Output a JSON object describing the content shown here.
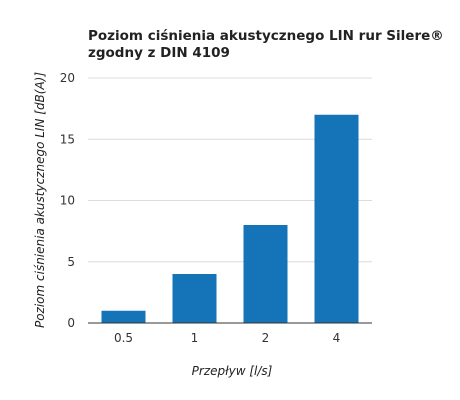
{
  "chart_data": {
    "type": "bar",
    "title_lines": [
      "Poziom ciśnienia akustycznego LIN rur Silere®",
      "zgodny z DIN 4109"
    ],
    "categories": [
      "0.5",
      "1",
      "2",
      "4"
    ],
    "values": [
      1,
      4,
      8,
      17
    ],
    "xlabel": "Przepływ [l/s]",
    "ylabel": "Poziom ciśnienia akustycznego LIN [dB(A)]",
    "ylim": [
      0,
      20
    ],
    "yticks": [
      0,
      5,
      10,
      15,
      20
    ],
    "grid": true,
    "legend": "none",
    "bar_color": "#1573b8"
  }
}
